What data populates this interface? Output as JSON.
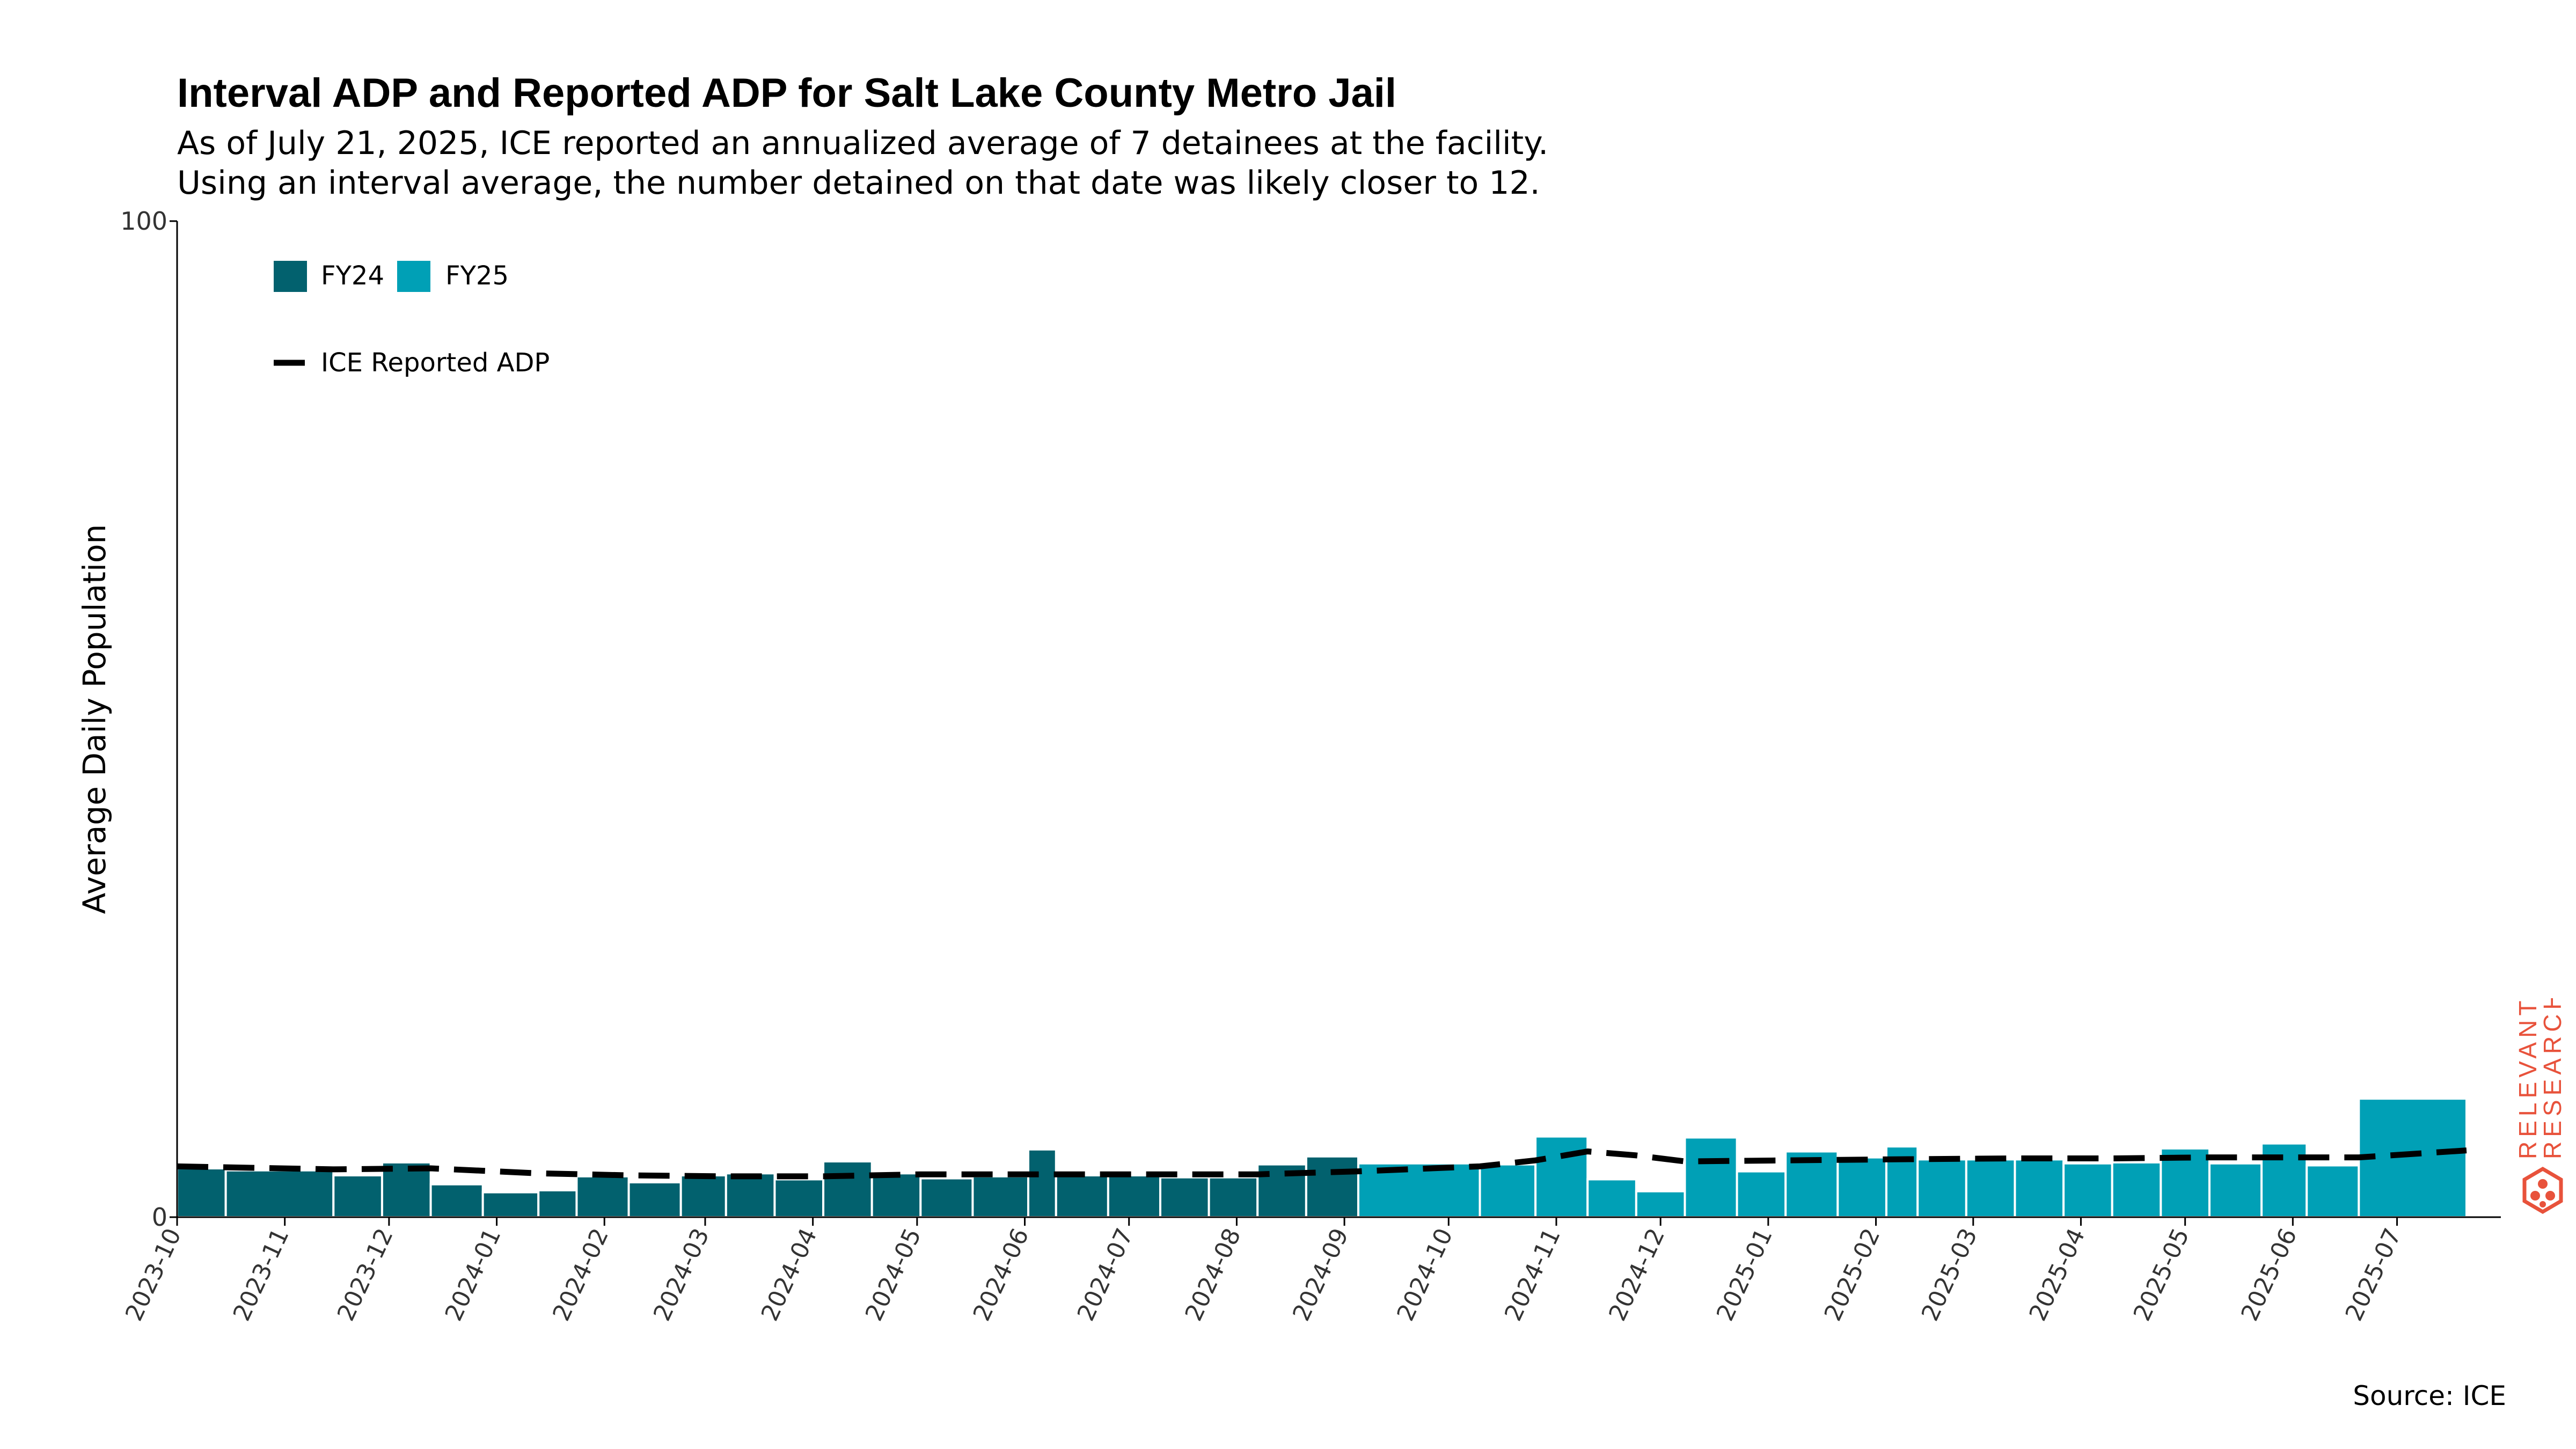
{
  "title": "Interval ADP and Reported ADP for Salt Lake County Metro Jail",
  "subtitle_line1": "As of July 21, 2025, ICE reported an annualized average of 7 detainees at the facility.",
  "subtitle_line2": "Using an interval average, the number detained on that date was likely closer to 12.",
  "source": "Source: ICE",
  "logo_text": "RELEVANT RESEARCH",
  "colors": {
    "fy24": "#02616e",
    "fy25": "#00a0b6",
    "reported_line": "#000000",
    "logo": "#e8523b"
  },
  "chart_data": {
    "type": "bar",
    "ylabel": "Average Daily Population",
    "ylim": [
      0,
      100
    ],
    "y_ticks": [
      0,
      100
    ],
    "x_tick_labels": [
      "2023-10",
      "2023-11",
      "2023-12",
      "2024-01",
      "2024-02",
      "2024-03",
      "2024-04",
      "2024-05",
      "2024-06",
      "2024-07",
      "2024-08",
      "2024-09",
      "2024-10",
      "2024-11",
      "2024-12",
      "2025-01",
      "2025-02",
      "2025-03",
      "2025-04",
      "2025-05",
      "2025-06",
      "2025-07"
    ],
    "legend": [
      "FY24",
      "FY25",
      "ICE Reported ADP"
    ],
    "legend_position": "top-left",
    "series": [
      {
        "name": "FY24",
        "bars": [
          {
            "start": "2023-10-01",
            "end": "2023-10-15",
            "value": 4.9
          },
          {
            "start": "2023-10-15",
            "end": "2023-11-15",
            "value": 4.7
          },
          {
            "start": "2023-11-15",
            "end": "2023-11-29",
            "value": 4.2
          },
          {
            "start": "2023-11-29",
            "end": "2023-12-13",
            "value": 5.5
          },
          {
            "start": "2023-12-13",
            "end": "2023-12-28",
            "value": 3.3
          },
          {
            "start": "2023-12-28",
            "end": "2024-01-13",
            "value": 2.5
          },
          {
            "start": "2024-01-13",
            "end": "2024-01-24",
            "value": 2.7
          },
          {
            "start": "2024-01-24",
            "end": "2024-02-08",
            "value": 4.1
          },
          {
            "start": "2024-02-08",
            "end": "2024-02-23",
            "value": 3.5
          },
          {
            "start": "2024-02-23",
            "end": "2024-03-07",
            "value": 4.2
          },
          {
            "start": "2024-03-07",
            "end": "2024-03-21",
            "value": 4.4
          },
          {
            "start": "2024-03-21",
            "end": "2024-04-04",
            "value": 3.8
          },
          {
            "start": "2024-04-04",
            "end": "2024-04-18",
            "value": 5.6
          },
          {
            "start": "2024-04-18",
            "end": "2024-05-02",
            "value": 4.4
          },
          {
            "start": "2024-05-02",
            "end": "2024-05-17",
            "value": 3.9
          },
          {
            "start": "2024-05-17",
            "end": "2024-06-02",
            "value": 4.1
          },
          {
            "start": "2024-06-02",
            "end": "2024-06-10",
            "value": 6.8
          },
          {
            "start": "2024-06-10",
            "end": "2024-06-25",
            "value": 4.2
          },
          {
            "start": "2024-06-25",
            "end": "2024-07-10",
            "value": 4.2
          },
          {
            "start": "2024-07-10",
            "end": "2024-07-24",
            "value": 4.0
          },
          {
            "start": "2024-07-24",
            "end": "2024-08-07",
            "value": 4.0
          },
          {
            "start": "2024-08-07",
            "end": "2024-08-21",
            "value": 5.3
          },
          {
            "start": "2024-08-21",
            "end": "2024-09-05",
            "value": 6.1
          }
        ]
      },
      {
        "name": "FY25",
        "bars": [
          {
            "start": "2024-09-05",
            "end": "2024-10-10",
            "value": 5.4
          },
          {
            "start": "2024-10-10",
            "end": "2024-10-26",
            "value": 5.3
          },
          {
            "start": "2024-10-26",
            "end": "2024-11-10",
            "value": 8.1
          },
          {
            "start": "2024-11-10",
            "end": "2024-11-24",
            "value": 3.8
          },
          {
            "start": "2024-11-24",
            "end": "2024-12-08",
            "value": 2.6
          },
          {
            "start": "2024-12-08",
            "end": "2024-12-23",
            "value": 8.0
          },
          {
            "start": "2024-12-23",
            "end": "2025-01-06",
            "value": 4.6
          },
          {
            "start": "2025-01-06",
            "end": "2025-01-21",
            "value": 6.6
          },
          {
            "start": "2025-01-21",
            "end": "2025-02-04",
            "value": 6.0
          },
          {
            "start": "2025-02-04",
            "end": "2025-02-13",
            "value": 7.1
          },
          {
            "start": "2025-02-13",
            "end": "2025-02-27",
            "value": 5.8
          },
          {
            "start": "2025-02-27",
            "end": "2025-03-13",
            "value": 5.8
          },
          {
            "start": "2025-03-13",
            "end": "2025-03-27",
            "value": 5.8
          },
          {
            "start": "2025-03-27",
            "end": "2025-04-10",
            "value": 5.4
          },
          {
            "start": "2025-04-10",
            "end": "2025-04-24",
            "value": 5.5
          },
          {
            "start": "2025-04-24",
            "end": "2025-05-08",
            "value": 6.9
          },
          {
            "start": "2025-05-08",
            "end": "2025-05-23",
            "value": 5.4
          },
          {
            "start": "2025-05-23",
            "end": "2025-06-05",
            "value": 7.4
          },
          {
            "start": "2025-06-05",
            "end": "2025-06-20",
            "value": 5.2
          },
          {
            "start": "2025-06-20",
            "end": "2025-07-21",
            "value": 11.9
          }
        ]
      },
      {
        "name": "ICE Reported ADP",
        "style": "dashed",
        "points": [
          {
            "date": "2023-10-01",
            "value": 5.1
          },
          {
            "date": "2023-11-15",
            "value": 4.8
          },
          {
            "date": "2023-12-13",
            "value": 4.9
          },
          {
            "date": "2024-01-13",
            "value": 4.4
          },
          {
            "date": "2024-02-08",
            "value": 4.2
          },
          {
            "date": "2024-03-07",
            "value": 4.1
          },
          {
            "date": "2024-04-04",
            "value": 4.1
          },
          {
            "date": "2024-05-02",
            "value": 4.3
          },
          {
            "date": "2024-06-02",
            "value": 4.3
          },
          {
            "date": "2024-07-10",
            "value": 4.3
          },
          {
            "date": "2024-08-07",
            "value": 4.3
          },
          {
            "date": "2024-09-05",
            "value": 4.6
          },
          {
            "date": "2024-10-10",
            "value": 5.1
          },
          {
            "date": "2024-10-26",
            "value": 5.7
          },
          {
            "date": "2024-11-10",
            "value": 6.6
          },
          {
            "date": "2024-11-24",
            "value": 6.2
          },
          {
            "date": "2024-12-08",
            "value": 5.6
          },
          {
            "date": "2025-01-06",
            "value": 5.7
          },
          {
            "date": "2025-02-04",
            "value": 5.8
          },
          {
            "date": "2025-03-13",
            "value": 5.9
          },
          {
            "date": "2025-04-10",
            "value": 5.9
          },
          {
            "date": "2025-05-08",
            "value": 6.0
          },
          {
            "date": "2025-06-05",
            "value": 6.0
          },
          {
            "date": "2025-06-20",
            "value": 6.0
          },
          {
            "date": "2025-07-21",
            "value": 6.7
          }
        ]
      }
    ]
  }
}
